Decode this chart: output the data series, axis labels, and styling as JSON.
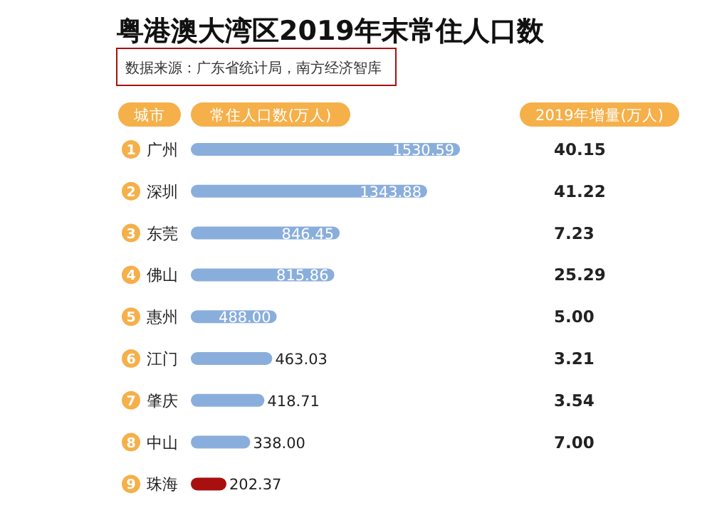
{
  "chart_data": [
    {
      "type": "bar",
      "orientation": "horizontal",
      "title": "粤港澳大湾区2019年末常住人口数",
      "subtitle": "数据来源：广东省统计局，南方经济智库",
      "ylabel": "城市",
      "xlabel": "常住人口数(万人)",
      "categories": [
        "广州",
        "深圳",
        "东莞",
        "佛山",
        "惠州",
        "江门",
        "肇庆",
        "中山",
        "珠海"
      ],
      "values": [
        1530.59,
        1343.88,
        846.45,
        815.86,
        488.0,
        463.03,
        418.71,
        338.0,
        202.37
      ],
      "value_labels": [
        "1530.59",
        "1343.88",
        "846.45",
        "815.86",
        "488.00",
        "463.03",
        "418.71",
        "338.00",
        "202.37"
      ],
      "colors": [
        "#8aaedc",
        "#8aaedc",
        "#8aaedc",
        "#8aaedc",
        "#8aaedc",
        "#8aaedc",
        "#8aaedc",
        "#8aaedc",
        "#a81010"
      ],
      "annotations": [
        "1",
        "2",
        "3",
        "4",
        "5",
        "6",
        "7",
        "8",
        "9"
      ]
    },
    {
      "type": "other",
      "title": "2019年增量(万人)",
      "values": [
        40.15,
        41.22,
        7.23,
        25.29,
        5.0,
        3.21,
        3.54,
        7.0,
        null
      ],
      "value_labels": [
        "40.15",
        "41.22",
        "7.23",
        "25.29",
        "5.00",
        "3.21",
        "3.54",
        "7.00",
        null
      ]
    }
  ]
}
